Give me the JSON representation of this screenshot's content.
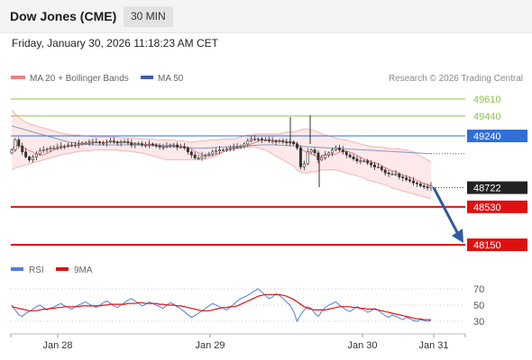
{
  "header": {
    "instrument": "Dow Jones (CME)",
    "timeframe": "30 MIN"
  },
  "timestamp": "Friday, January 30, 2026 11:18:23 AM CET",
  "legend": {
    "bollinger_label": "MA 20 + Bollinger Bands",
    "ma50_label": "MA 50",
    "credit": "Research © 2026 Trading Central",
    "rsi_label": "RSI",
    "rsi_ma_label": "9MA"
  },
  "colors": {
    "bollinger": "#f08080",
    "ma50": "#3b5ea8",
    "resistance": "#8bc34a",
    "pivot": "#2f6fd6",
    "support": "#e01010",
    "price": "#222222",
    "candle_up": "#2a9d8f",
    "candle_down": "#b5323c",
    "arrow": "#2d5b9e",
    "rsi": "#4f7fe0",
    "rsi_ma": "#e01010"
  },
  "chart_data": {
    "type": "candlestick",
    "x_ticks": [
      "Jan 28",
      "Jan 29",
      "Jan 30",
      "Jan 31"
    ],
    "y_range": [
      48000,
      49800
    ],
    "levels": [
      {
        "label": "49610",
        "value": 49610,
        "kind": "resistance"
      },
      {
        "label": "49440",
        "value": 49440,
        "kind": "resistance"
      },
      {
        "label": "49240",
        "value": 49240,
        "kind": "pivot"
      },
      {
        "label": "48722",
        "value": 48722,
        "kind": "price"
      },
      {
        "label": "48530",
        "value": 48530,
        "kind": "support"
      },
      {
        "label": "48150",
        "value": 48150,
        "kind": "support"
      }
    ],
    "price_close": [
      49100,
      49200,
      49140,
      49080,
      49030,
      49000,
      49030,
      49060,
      49090,
      49100,
      49110,
      49120,
      49120,
      49130,
      49140,
      49140,
      49150,
      49150,
      49150,
      49160,
      49170,
      49170,
      49180,
      49180,
      49180,
      49170,
      49170,
      49180,
      49190,
      49180,
      49170,
      49180,
      49180,
      49170,
      49150,
      49160,
      49160,
      49150,
      49150,
      49160,
      49150,
      49140,
      49130,
      49130,
      49140,
      49150,
      49150,
      49130,
      49130,
      49120,
      49080,
      49050,
      49020,
      49020,
      49040,
      49050,
      49060,
      49080,
      49090,
      49100,
      49100,
      49110,
      49120,
      49130,
      49130,
      49140,
      49160,
      49190,
      49210,
      49210,
      49210,
      49200,
      49200,
      49190,
      49190,
      49180,
      49190,
      49180,
      49170,
      49180,
      49160,
      49120,
      48930,
      48960,
      49080,
      49100,
      49070,
      49000,
      49020,
      49050,
      49070,
      49100,
      49120,
      49100,
      49080,
      49050,
      49030,
      49010,
      48990,
      48990,
      48990,
      48970,
      48950,
      48930,
      48930,
      48900,
      48870,
      48860,
      48860,
      48860,
      48830,
      48820,
      48800,
      48790,
      48770,
      48760,
      48740,
      48730,
      48720,
      48740
    ],
    "bollinger_upper": [
      49500,
      49460,
      49430,
      49400,
      49380,
      49360,
      49350,
      49340,
      49330,
      49320,
      49310,
      49300,
      49290,
      49280,
      49270,
      49260,
      49260,
      49250,
      49250,
      49250,
      49240,
      49240,
      49240,
      49230,
      49230,
      49230,
      49230,
      49230,
      49230,
      49230,
      49230,
      49220,
      49220,
      49220,
      49220,
      49220,
      49210,
      49210,
      49210,
      49210,
      49210,
      49200,
      49200,
      49200,
      49200,
      49200,
      49200,
      49190,
      49190,
      49190,
      49180,
      49180,
      49180,
      49190,
      49190,
      49190,
      49200,
      49200,
      49200,
      49200,
      49210,
      49210,
      49210,
      49210,
      49220,
      49230,
      49240,
      49250,
      49250,
      49260,
      49260,
      49260,
      49260,
      49260,
      49260,
      49260,
      49260,
      49270,
      49280,
      49280,
      49280,
      49290,
      49300,
      49310,
      49310,
      49300,
      49290,
      49280,
      49260,
      49250,
      49240,
      49230,
      49220,
      49210,
      49200,
      49200,
      49190,
      49180,
      49170,
      49160,
      49150,
      49140,
      49140,
      49130,
      49130,
      49130,
      49120,
      49120,
      49110,
      49110,
      49110,
      49100,
      49100,
      49090,
      49080,
      49060,
      49040,
      49020,
      49000,
      48980
    ],
    "bollinger_lower": [
      48900,
      48920,
      48930,
      48940,
      48950,
      48960,
      48970,
      48980,
      48990,
      49000,
      49010,
      49020,
      49030,
      49040,
      49050,
      49060,
      49060,
      49070,
      49080,
      49080,
      49090,
      49090,
      49090,
      49100,
      49100,
      49100,
      49100,
      49100,
      49100,
      49100,
      49100,
      49090,
      49090,
      49090,
      49080,
      49080,
      49070,
      49070,
      49060,
      49050,
      49040,
      49030,
      49020,
      49010,
      49000,
      49000,
      49000,
      49000,
      49000,
      49000,
      49000,
      49000,
      49000,
      49000,
      49000,
      49010,
      49020,
      49030,
      49040,
      49060,
      49080,
      49090,
      49100,
      49110,
      49120,
      49120,
      49130,
      49130,
      49130,
      49130,
      49120,
      49110,
      49100,
      49080,
      49060,
      49040,
      49020,
      49000,
      48980,
      48960,
      48940,
      48900,
      48880,
      48870,
      48870,
      48880,
      48880,
      48890,
      48900,
      48900,
      48900,
      48900,
      48900,
      48890,
      48880,
      48870,
      48860,
      48850,
      48840,
      48830,
      48820,
      48800,
      48790,
      48780,
      48770,
      48760,
      48750,
      48740,
      48720,
      48710,
      48700,
      48690,
      48680,
      48670,
      48660,
      48650,
      48640,
      48630,
      48620,
      48610
    ],
    "ma50": [
      49340,
      49330,
      49320,
      49310,
      49300,
      49290,
      49280,
      49270,
      49260,
      49250,
      49240,
      49230,
      49220,
      49210,
      49200,
      49190,
      49180,
      49175,
      49170,
      49165,
      49160,
      49158,
      49155,
      49152,
      49150,
      49150,
      49150,
      49150,
      49150,
      49150,
      49150,
      49150,
      49150,
      49150,
      49150,
      49150,
      49150,
      49148,
      49146,
      49144,
      49142,
      49140,
      49138,
      49136,
      49134,
      49132,
      49130,
      49128,
      49126,
      49124,
      49122,
      49120,
      49118,
      49118,
      49118,
      49118,
      49120,
      49122,
      49124,
      49126,
      49128,
      49130,
      49132,
      49134,
      49136,
      49138,
      49140,
      49142,
      49144,
      49146,
      49148,
      49150,
      49150,
      49152,
      49152,
      49150,
      49148,
      49146,
      49144,
      49142,
      49140,
      49138,
      49136,
      49134,
      49132,
      49130,
      49128,
      49126,
      49124,
      49122,
      49120,
      49118,
      49116,
      49114,
      49112,
      49110,
      49108,
      49106,
      49104,
      49102,
      49100,
      49098,
      49096,
      49094,
      49092,
      49090,
      49088,
      49086,
      49084,
      49082,
      49080,
      49078,
      49076,
      49074,
      49072,
      49070,
      49068,
      49066,
      49064,
      49062
    ],
    "projection": {
      "from": 48722,
      "to": 48150
    },
    "rsi": {
      "ticks": [
        70,
        50,
        30
      ],
      "y_range": [
        20,
        80
      ],
      "values": [
        50,
        44,
        38,
        36,
        40,
        42,
        45,
        48,
        50,
        47,
        44,
        46,
        48,
        50,
        52,
        49,
        47,
        45,
        48,
        50,
        52,
        54,
        51,
        49,
        47,
        50,
        53,
        55,
        52,
        49,
        47,
        50,
        53,
        56,
        58,
        55,
        52,
        49,
        51,
        54,
        52,
        50,
        48,
        46,
        50,
        53,
        51,
        48,
        45,
        42,
        38,
        35,
        37,
        40,
        43,
        46,
        49,
        52,
        50,
        48,
        46,
        44,
        47,
        51,
        55,
        58,
        60,
        62,
        65,
        68,
        70,
        66,
        62,
        58,
        60,
        64,
        62,
        58,
        54,
        50,
        42,
        30,
        38,
        44,
        48,
        46,
        40,
        36,
        42,
        47,
        50,
        52,
        54,
        50,
        47,
        44,
        42,
        45,
        48,
        46,
        44,
        41,
        43,
        46,
        44,
        40,
        37,
        35,
        38,
        36,
        34,
        32,
        35,
        33,
        31,
        30,
        32,
        31,
        30,
        31
      ],
      "ma9": [
        48,
        47,
        46,
        45,
        44,
        43,
        43,
        43,
        44,
        45,
        45,
        46,
        46,
        47,
        47,
        48,
        48,
        48,
        48,
        48,
        49,
        49,
        49,
        49,
        49,
        49,
        50,
        50,
        51,
        51,
        51,
        51,
        51,
        52,
        52,
        52,
        53,
        53,
        52,
        52,
        52,
        52,
        51,
        51,
        50,
        50,
        50,
        49,
        49,
        48,
        47,
        46,
        45,
        44,
        43,
        43,
        43,
        44,
        45,
        46,
        47,
        47,
        48,
        48,
        49,
        51,
        53,
        55,
        57,
        59,
        61,
        62,
        63,
        63,
        63,
        63,
        63,
        62,
        61,
        59,
        57,
        54,
        51,
        48,
        46,
        45,
        44,
        44,
        44,
        44,
        45,
        46,
        47,
        48,
        48,
        48,
        48,
        47,
        47,
        46,
        46,
        45,
        45,
        45,
        44,
        43,
        42,
        41,
        40,
        39,
        38,
        37,
        36,
        35,
        34,
        33,
        33,
        32,
        32,
        32
      ]
    }
  }
}
